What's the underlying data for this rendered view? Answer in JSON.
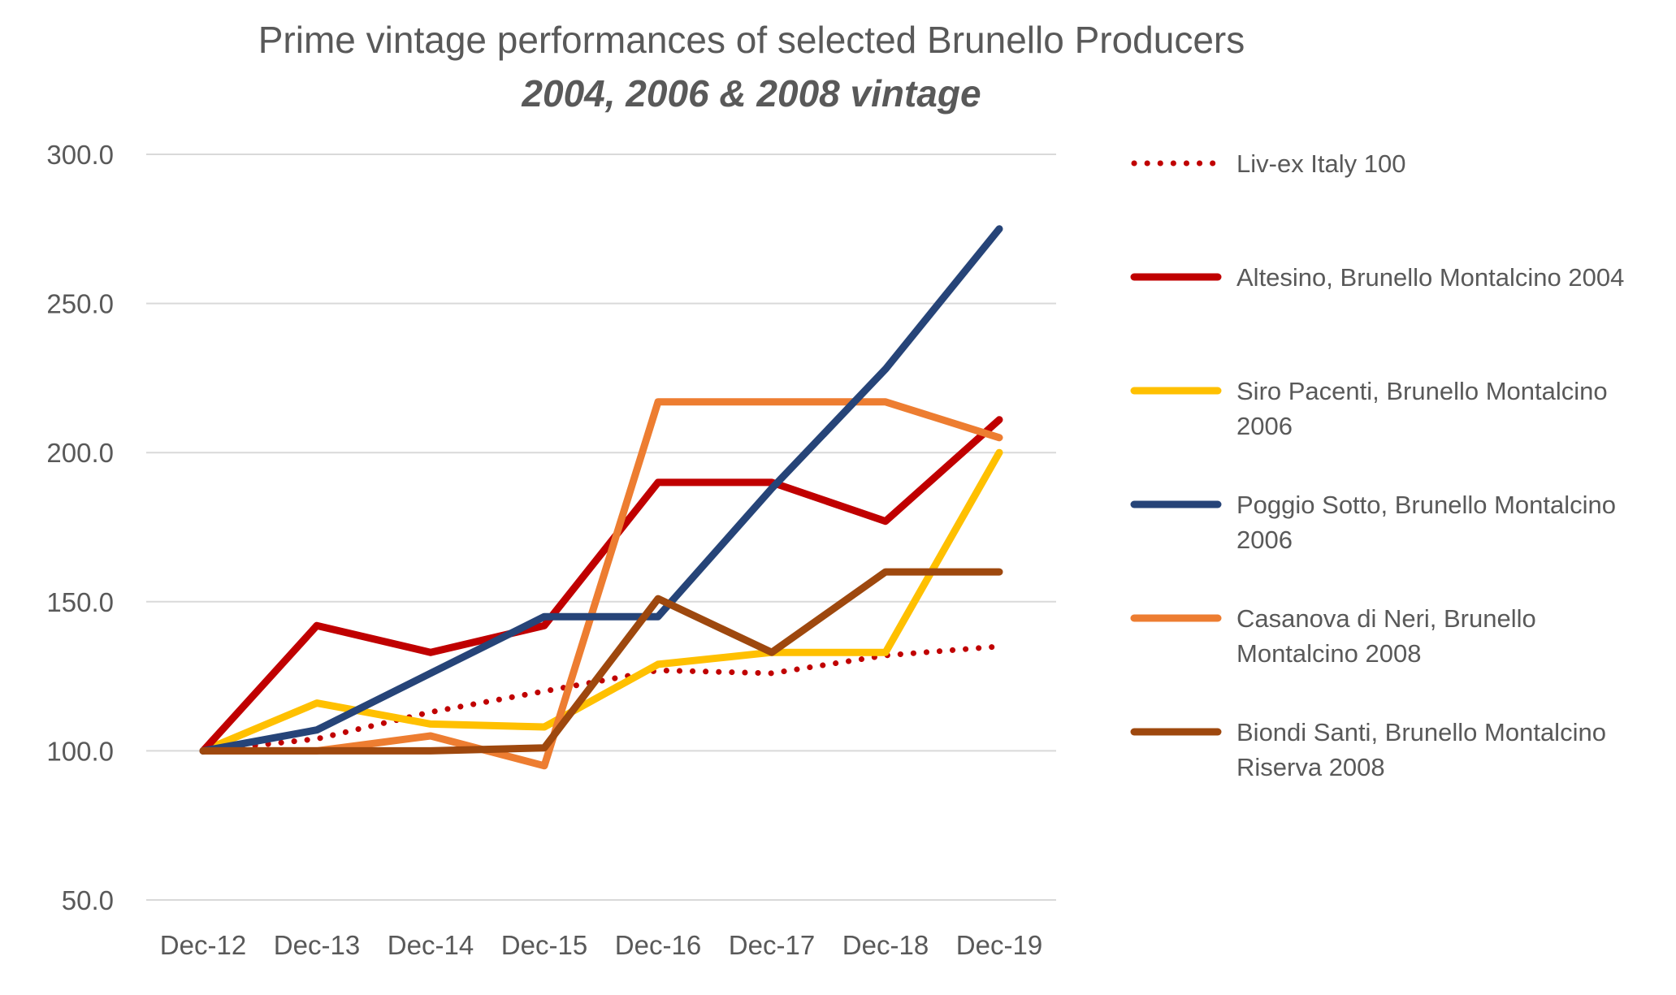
{
  "title": "Prime vintage performances of selected Brunello Producers",
  "subtitle": "2004, 2006 & 2008 vintage",
  "chart_data": {
    "type": "line",
    "title": "Prime vintage performances of selected Brunello Producers",
    "subtitle": "2004, 2006 & 2008 vintage",
    "xlabel": "",
    "ylabel": "",
    "categories": [
      "Dec-12",
      "Dec-13",
      "Dec-14",
      "Dec-15",
      "Dec-16",
      "Dec-17",
      "Dec-18",
      "Dec-19"
    ],
    "ylim": [
      50,
      300
    ],
    "yticks": [
      "300.0",
      "250.0",
      "200.0",
      "150.0",
      "100.0",
      "50.0"
    ],
    "grid": true,
    "legend_position": "right",
    "series": [
      {
        "name": "Liv-ex Italy 100",
        "color": "#c00000",
        "style": "dotted",
        "values": [
          100,
          104,
          113,
          120,
          127,
          126,
          132,
          135
        ]
      },
      {
        "name": "Altesino, Brunello Montalcino 2004",
        "color": "#c00000",
        "style": "solid",
        "values": [
          100,
          142,
          133,
          142,
          190,
          190,
          177,
          211
        ]
      },
      {
        "name": "Siro Pacenti, Brunello Montalcino 2006",
        "color": "#ffc000",
        "style": "solid",
        "values": [
          100,
          116,
          109,
          108,
          129,
          133,
          133,
          200
        ]
      },
      {
        "name": "Poggio Sotto, Brunello Montalcino 2006",
        "color": "#264478",
        "style": "solid",
        "values": [
          100,
          107,
          126,
          145,
          145,
          188,
          228,
          275
        ]
      },
      {
        "name": "Casanova di Neri, Brunello Montalcino 2008",
        "color": "#ed7d31",
        "style": "solid",
        "values": [
          100,
          100,
          105,
          95,
          217,
          217,
          217,
          205
        ]
      },
      {
        "name": "Biondi Santi, Brunello Montalcino Riserva 2008",
        "color": "#9e480e",
        "style": "solid",
        "values": [
          100,
          100,
          100,
          101,
          151,
          133,
          160,
          160
        ]
      }
    ]
  }
}
